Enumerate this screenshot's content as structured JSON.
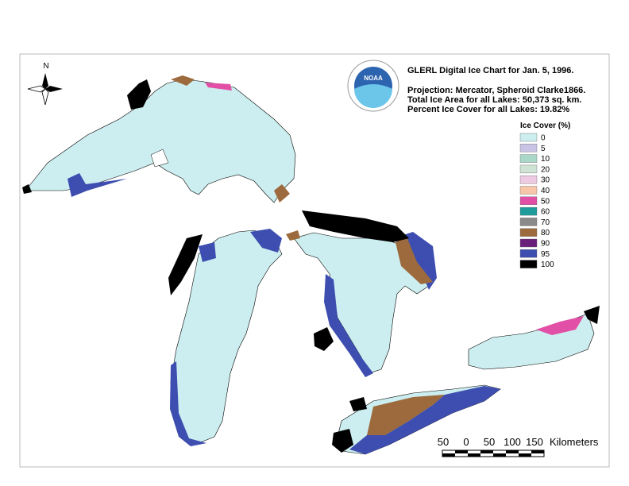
{
  "header": {
    "title": "GLERL Digital Ice Chart for Jan. 5, 1996.",
    "lines": [
      "Projection:  Mercator, Spheroid Clarke1866.",
      "Total Ice Area for all Lakes: 50,373 sq. km.",
      "Percent Ice Cover for all Lakes:  19.82%"
    ]
  },
  "logo": {
    "text": "NOAA"
  },
  "compass": {
    "label": "N"
  },
  "legend": {
    "title": "Ice Cover (%)",
    "items": [
      {
        "label": "0",
        "color": "#cdeef0"
      },
      {
        "label": "5",
        "color": "#c9c3e6"
      },
      {
        "label": "10",
        "color": "#a9d8c8"
      },
      {
        "label": "20",
        "color": "#cfe3d5"
      },
      {
        "label": "30",
        "color": "#edc9e2"
      },
      {
        "label": "40",
        "color": "#f7c6a8"
      },
      {
        "label": "50",
        "color": "#e14fa6"
      },
      {
        "label": "60",
        "color": "#1e9c9c"
      },
      {
        "label": "70",
        "color": "#8a8a8a"
      },
      {
        "label": "80",
        "color": "#9c6a3c"
      },
      {
        "label": "90",
        "color": "#6a1f7a"
      },
      {
        "label": "95",
        "color": "#3d4eb0"
      },
      {
        "label": "100",
        "color": "#000000"
      }
    ]
  },
  "scale": {
    "labels": [
      "50",
      "0",
      "50",
      "100",
      "150"
    ],
    "unit": "Kilometers"
  }
}
